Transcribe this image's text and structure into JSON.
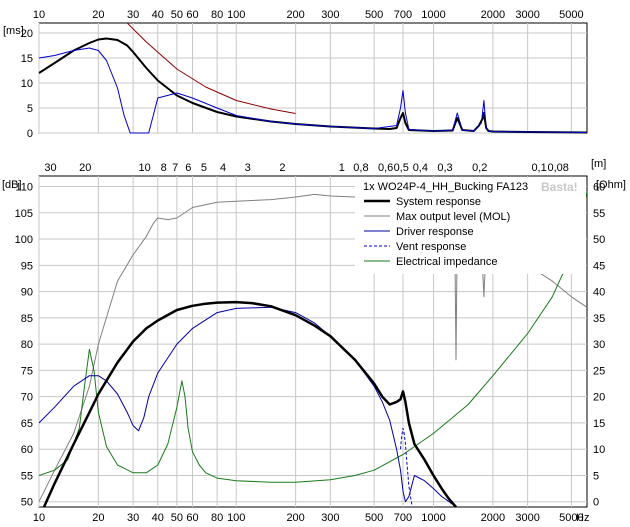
{
  "chart_data": [
    {
      "type": "line",
      "title": "",
      "xlabel": "",
      "ylabel": "[ms]",
      "x_scale": "log",
      "xlim": [
        10,
        6000
      ],
      "ylim": [
        0,
        22
      ],
      "x_ticks": [
        10,
        20,
        30,
        40,
        50,
        60,
        80,
        100,
        200,
        300,
        500,
        700,
        1000,
        2000,
        3000,
        5000
      ],
      "x_tick_labels": [
        "10",
        "20",
        "30",
        "40",
        "50",
        "60",
        "80",
        "100",
        "200",
        "300",
        "500",
        "700",
        "1000",
        "2000",
        "3000",
        "5000"
      ],
      "y_ticks": [
        0,
        5,
        10,
        15,
        20
      ],
      "y_tick_labels": [
        "0",
        "5",
        "10",
        "15",
        "20"
      ],
      "grid": true,
      "series": [
        {
          "name": "",
          "color": "#000000",
          "x": [
            10,
            12,
            15,
            18,
            20,
            22,
            25,
            28,
            30,
            35,
            40,
            50,
            60,
            80,
            100,
            150,
            200,
            300,
            500,
            600,
            650,
            680,
            700,
            720,
            750,
            1000,
            1250,
            1320,
            1400,
            1600,
            1700,
            1780,
            1800,
            1850,
            1900,
            2000,
            3000,
            6000
          ],
          "y": [
            12,
            14,
            16.5,
            18,
            18.7,
            18.9,
            18.6,
            17.5,
            16.2,
            13,
            10.5,
            7.5,
            6,
            4.2,
            3.3,
            2.3,
            1.8,
            1.3,
            0.9,
            0.8,
            1,
            3,
            4,
            2,
            0.6,
            0.4,
            0.5,
            3,
            0.6,
            0.4,
            1.5,
            3,
            4,
            1,
            0.4,
            0.3,
            0.2,
            0.1
          ]
        },
        {
          "name": "",
          "color": "#0000c8",
          "x": [
            10,
            12,
            15,
            18,
            20,
            22,
            25,
            27,
            29,
            31,
            34,
            36,
            40,
            50,
            60,
            80,
            100,
            150,
            200,
            300,
            500,
            650,
            680,
            700,
            720,
            750,
            1000,
            1250,
            1320,
            1400,
            1600,
            1750,
            1800,
            1850,
            1900,
            2000,
            3000,
            6000
          ],
          "y": [
            15,
            15.5,
            16.5,
            17,
            16.5,
            14.5,
            9,
            3.5,
            0,
            0,
            0,
            0,
            7,
            8,
            7,
            5,
            3.5,
            2.3,
            1.8,
            1.3,
            0.9,
            1.5,
            5,
            8.5,
            4,
            0.7,
            0.4,
            0.6,
            4,
            0.6,
            0.4,
            2,
            6.5,
            1,
            0.4,
            0.3,
            0.2,
            0.1
          ]
        },
        {
          "name": "",
          "color": "#8b0000",
          "x": [
            28,
            35,
            50,
            70,
            100,
            150,
            200
          ],
          "y": [
            22,
            18.2,
            12.8,
            9.2,
            6.5,
            4.8,
            3.9
          ]
        }
      ]
    },
    {
      "type": "line",
      "title": "",
      "chart_label": "1x WO24P-4_HH_Bucking FA123",
      "watermark": "Basta!",
      "xlabel": "Hz",
      "ylabel": "[dB]",
      "y2label": "[Ohm]",
      "top_axis_label": "[m]",
      "x_scale": "log",
      "xlim": [
        10,
        6000
      ],
      "ylim": [
        49,
        112
      ],
      "y2lim": [
        -1,
        62
      ],
      "x_ticks": [
        10,
        20,
        30,
        40,
        50,
        60,
        80,
        100,
        200,
        300,
        500,
        700,
        1000,
        2000,
        3000,
        5000
      ],
      "x_tick_labels": [
        "10",
        "20",
        "30",
        "40",
        "50",
        "60",
        "80",
        "100",
        "200",
        "300",
        "500",
        "700",
        "1000",
        "2000",
        "3000",
        "5000"
      ],
      "top_ticks": [
        30,
        20,
        10,
        8,
        7,
        6,
        5,
        4,
        3,
        2,
        1,
        0.8,
        0.6,
        0.5,
        0.4,
        0.3,
        0.2,
        0.1,
        0.08
      ],
      "top_tick_labels": [
        "30",
        "20",
        "10",
        "8",
        "7",
        "6",
        "5",
        "4",
        "3",
        "2",
        "1",
        "0,8",
        "0,6",
        "0,5",
        "0,4",
        "0,3",
        "0,2",
        "0,1",
        "0,08"
      ],
      "y_ticks": [
        50,
        55,
        60,
        65,
        70,
        75,
        80,
        85,
        90,
        95,
        100,
        105,
        110
      ],
      "y_tick_labels": [
        "50",
        "55",
        "60",
        "65",
        "70",
        "75",
        "80",
        "85",
        "90",
        "95",
        "100",
        "105",
        "110"
      ],
      "y2_ticks": [
        0,
        5,
        10,
        15,
        20,
        25,
        30,
        35,
        40,
        45,
        50,
        55,
        60
      ],
      "y2_tick_labels": [
        "0",
        "5",
        "10",
        "15",
        "20",
        "25",
        "30",
        "35",
        "40",
        "45",
        "50",
        "55",
        "60"
      ],
      "grid": true,
      "legend_position": "top-right",
      "series": [
        {
          "name": "System response",
          "color": "#000000",
          "style": "thick",
          "axis": "left",
          "x": [
            10.6,
            12,
            15,
            18,
            20,
            25,
            30,
            35,
            40,
            50,
            60,
            70,
            80,
            100,
            120,
            150,
            200,
            250,
            300,
            400,
            500,
            550,
            600,
            650,
            680,
            700,
            720,
            750,
            800,
            900,
            1000,
            1100,
            1200,
            1300
          ],
          "y": [
            48.5,
            53.5,
            61,
            67,
            70.5,
            76.5,
            80.5,
            83,
            84.5,
            86.5,
            87.3,
            87.7,
            87.9,
            88,
            87.8,
            87.2,
            85.5,
            83.5,
            81.5,
            77,
            72.5,
            70,
            68.5,
            69,
            69.5,
            71,
            69,
            65,
            61,
            58,
            55,
            52.5,
            50.5,
            49
          ]
        },
        {
          "name": "Max output level (MOL)",
          "color": "#808080",
          "style": "solid",
          "axis": "left",
          "x": [
            10,
            12,
            15,
            18,
            20,
            25,
            30,
            35,
            38,
            40,
            45,
            50,
            60,
            80,
            100,
            150,
            200,
            250,
            300,
            400,
            500,
            600,
            800,
            1000,
            1200,
            1280,
            1300,
            1320,
            1350,
            1400,
            1600,
            1750,
            1800,
            1850,
            1900,
            2000,
            3000,
            4000,
            5000,
            6000
          ],
          "y": [
            50,
            56,
            63,
            72,
            80,
            92,
            97,
            100.5,
            103,
            104,
            103.7,
            104,
            106,
            107,
            107.2,
            107.5,
            108,
            108.5,
            108.2,
            108,
            107.5,
            106,
            104,
            103,
            103,
            102,
            77,
            102,
            100,
            100,
            99.5,
            99,
            89,
            99,
            98,
            97,
            95,
            92,
            89,
            87
          ]
        },
        {
          "name": "Driver response",
          "color": "#0000a0",
          "style": "solid",
          "axis": "left",
          "x": [
            10,
            12,
            15,
            18,
            20,
            22,
            25,
            28,
            30,
            32,
            34,
            36,
            40,
            50,
            60,
            80,
            100,
            150,
            200,
            250,
            300,
            400,
            500,
            550,
            600,
            650,
            680,
            700,
            720,
            750,
            800,
            900,
            1000,
            1100,
            1200,
            1300
          ],
          "y": [
            65,
            68,
            72,
            74,
            74,
            73,
            70.5,
            67,
            64.5,
            63.5,
            66,
            70,
            74.5,
            80,
            83,
            86,
            86.8,
            87,
            86,
            84,
            81.5,
            77,
            72,
            69,
            65.5,
            60,
            56,
            52,
            50,
            51,
            55,
            54,
            52.5,
            51,
            50,
            49
          ]
        },
        {
          "name": "Vent response",
          "color": "#0000c8",
          "style": "dashed",
          "axis": "left",
          "x": [
            680,
            690,
            700,
            710,
            720,
            735,
            750,
            780
          ],
          "y": [
            60,
            62.5,
            64,
            63,
            61,
            57,
            53,
            49
          ]
        },
        {
          "name": "Electrical impedance",
          "color": "#1a7a1a",
          "style": "solid",
          "axis": "right",
          "x": [
            10,
            12,
            14,
            16,
            17,
            18,
            19,
            20,
            22,
            25,
            30,
            35,
            40,
            45,
            50,
            53,
            55,
            57,
            60,
            65,
            70,
            80,
            100,
            150,
            200,
            300,
            400,
            500,
            700,
            1000,
            1500,
            2000,
            3000,
            4000,
            5000,
            6000
          ],
          "y": [
            5,
            6,
            8,
            14,
            22,
            29,
            25,
            17,
            10.5,
            7,
            5.5,
            5.5,
            7,
            11,
            18,
            23,
            20,
            14,
            9.5,
            7,
            5.5,
            4.5,
            4,
            3.7,
            3.7,
            4.2,
            5,
            6,
            9,
            13,
            18.5,
            24,
            32,
            39,
            47,
            59
          ]
        }
      ]
    }
  ]
}
